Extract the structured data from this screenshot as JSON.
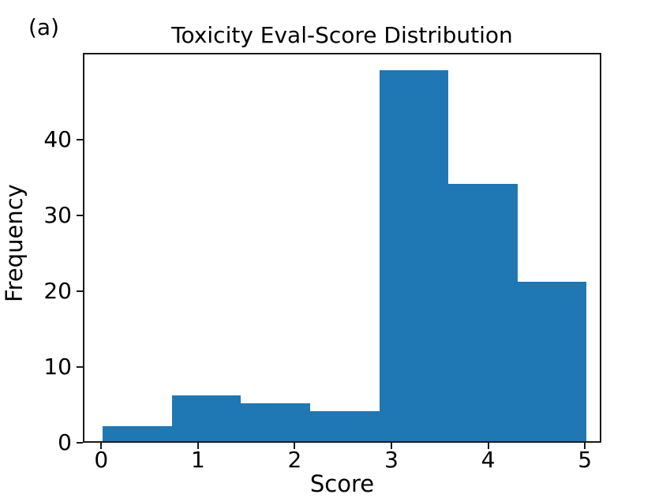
{
  "figure": {
    "panel_label": "(a)"
  },
  "chart_data": {
    "type": "bar",
    "subtype": "histogram",
    "title": "Toxicity Eval-Score Distribution",
    "xlabel": "Score",
    "ylabel": "Frequency",
    "bin_edges": [
      0,
      0.7143,
      1.4286,
      2.1429,
      2.8571,
      3.5714,
      4.2857,
      5
    ],
    "values": [
      2,
      6,
      5,
      4,
      49,
      34,
      21
    ],
    "xticks": [
      0,
      1,
      2,
      3,
      4,
      5
    ],
    "yticks": [
      0,
      10,
      20,
      30,
      40
    ],
    "xlim": [
      -0.19,
      5.17
    ],
    "ylim": [
      0,
      51.45
    ],
    "bar_color": "#1f77b4",
    "axis_color": "#1a1a1a",
    "grid": false,
    "legend_position": "none"
  }
}
